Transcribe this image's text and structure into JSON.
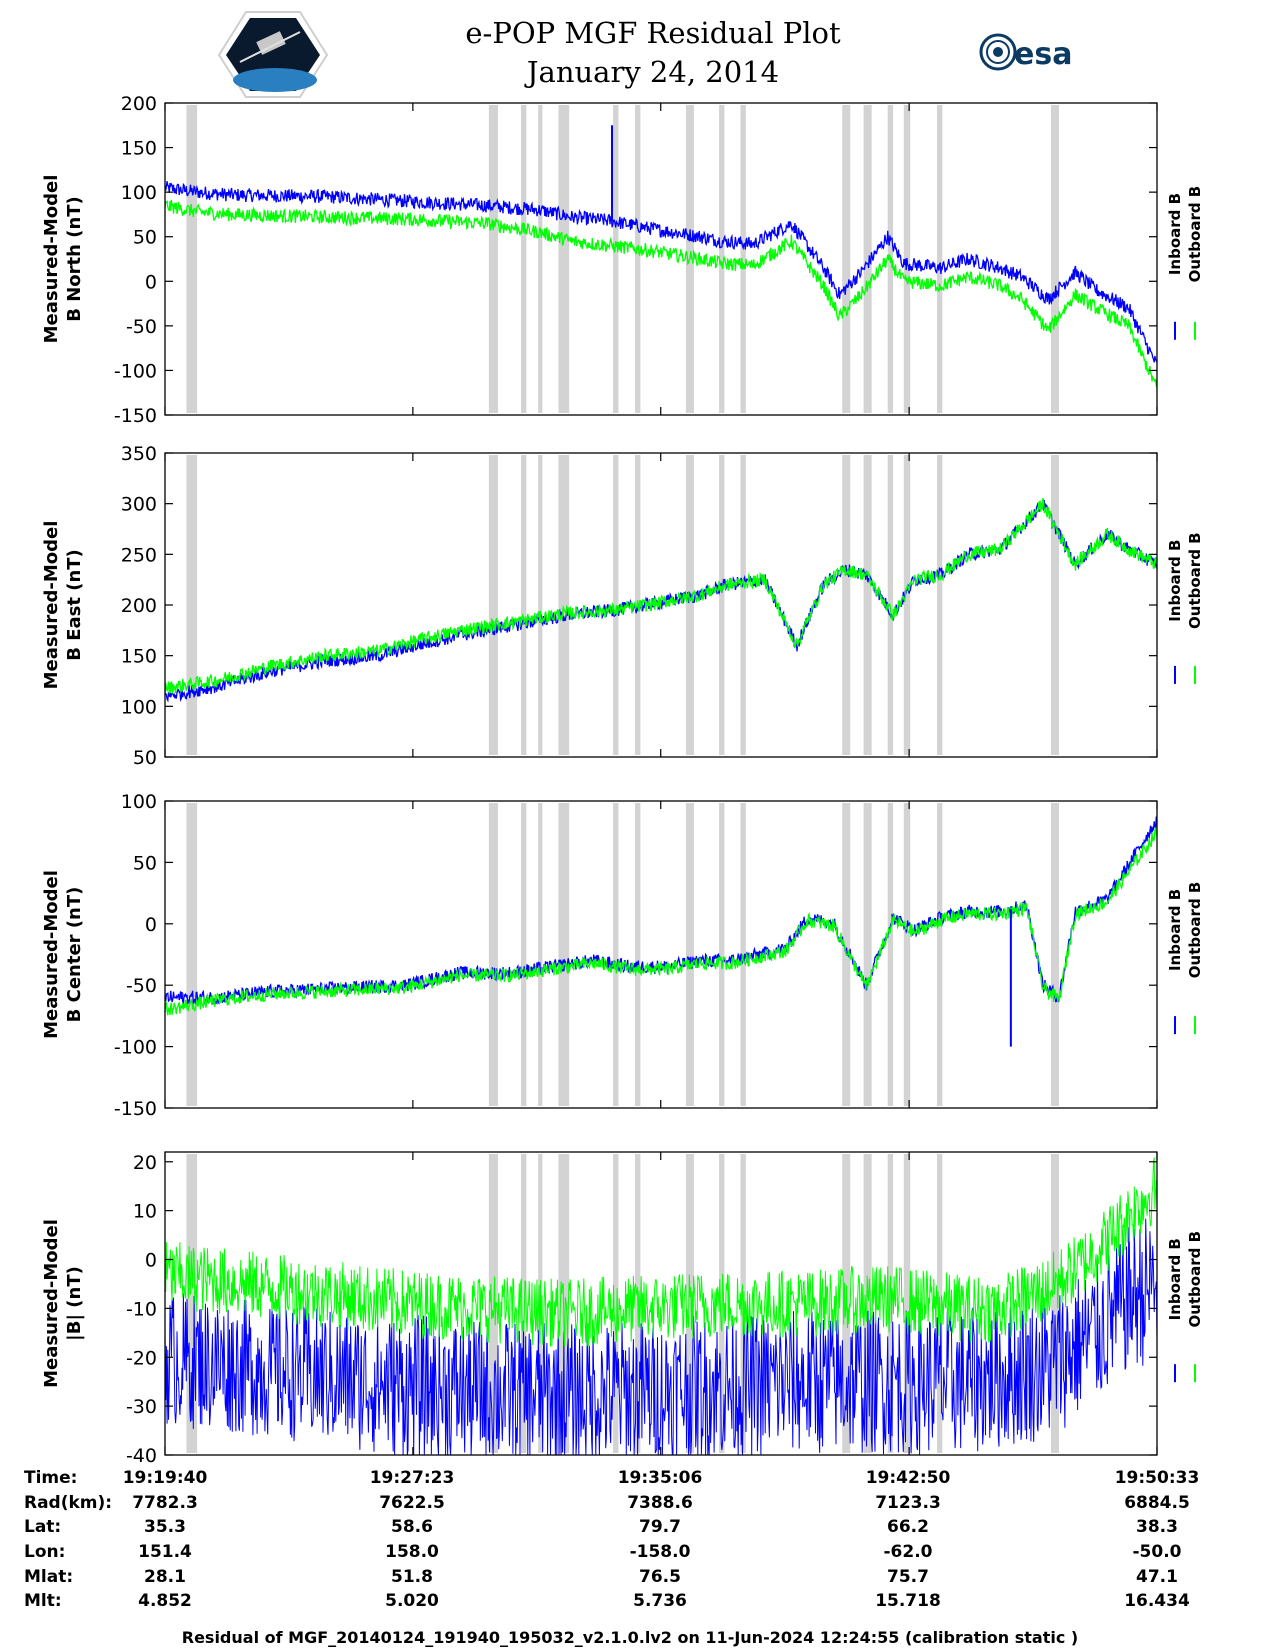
{
  "title": {
    "line1": "e-POP MGF Residual Plot",
    "line2": "January 24, 2014"
  },
  "esa_logo_text": "esa",
  "colors": {
    "inboard": "#0000ff",
    "outboard": "#00ff00",
    "gap_band": "#d3d3d3"
  },
  "legend": {
    "inboard": "Inboard B",
    "outboard": "Outboard B"
  },
  "gap_bands_seconds": [
    [
      40,
      60
    ],
    [
      605,
      622
    ],
    [
      665,
      675
    ],
    [
      697,
      705
    ],
    [
      735,
      755
    ],
    [
      837,
      847
    ],
    [
      878,
      888
    ],
    [
      973,
      988
    ],
    [
      1035,
      1045
    ],
    [
      1075,
      1085
    ],
    [
      1265,
      1280
    ],
    [
      1305,
      1320
    ],
    [
      1350,
      1360
    ],
    [
      1380,
      1392
    ],
    [
      1442,
      1452
    ],
    [
      1655,
      1670
    ]
  ],
  "chart_data": [
    {
      "id": "north",
      "type": "line",
      "ylabel_line1": "Measured-Model",
      "ylabel_line2": "B North (nT)",
      "ylim": [
        -150,
        200
      ],
      "yticks": [
        "200",
        "150",
        "100",
        "50",
        "0",
        "-50",
        "-100",
        "-150"
      ],
      "x_seconds": [
        0,
        60,
        120,
        300,
        450,
        600,
        700,
        760,
        830,
        900,
        1000,
        1040,
        1100,
        1170,
        1230,
        1260,
        1300,
        1350,
        1380,
        1450,
        1500,
        1560,
        1600,
        1650,
        1700,
        1740,
        1800,
        1853
      ],
      "series": [
        {
          "name": "Inboard B",
          "values": [
            105,
            100,
            97,
            95,
            90,
            85,
            80,
            72,
            68,
            60,
            50,
            45,
            42,
            65,
            15,
            -15,
            10,
            50,
            20,
            15,
            25,
            15,
            5,
            -20,
            10,
            -10,
            -30,
            -95
          ]
        },
        {
          "name": "Outboard B",
          "values": [
            85,
            78,
            75,
            72,
            70,
            65,
            55,
            45,
            40,
            35,
            25,
            20,
            18,
            45,
            -5,
            -40,
            -15,
            25,
            0,
            -5,
            5,
            -5,
            -20,
            -55,
            -15,
            -30,
            -50,
            -120
          ]
        }
      ],
      "spike": {
        "x": 835,
        "y": 175
      }
    },
    {
      "id": "east",
      "type": "line",
      "ylabel_line1": "Measured-Model",
      "ylabel_line2": "B East (nT)",
      "ylim": [
        50,
        350
      ],
      "yticks": [
        "350",
        "300",
        "250",
        "200",
        "150",
        "100",
        "50"
      ],
      "x_seconds": [
        0,
        100,
        200,
        300,
        400,
        470,
        550,
        650,
        750,
        840,
        900,
        1000,
        1050,
        1120,
        1180,
        1230,
        1270,
        1310,
        1360,
        1400,
        1450,
        1500,
        1560,
        1640,
        1700,
        1760,
        1800,
        1853
      ],
      "series": [
        {
          "name": "Inboard B",
          "values": [
            110,
            120,
            135,
            145,
            150,
            160,
            170,
            180,
            190,
            195,
            200,
            210,
            220,
            225,
            160,
            220,
            235,
            230,
            190,
            225,
            230,
            250,
            255,
            300,
            240,
            270,
            255,
            240
          ]
        },
        {
          "name": "Outboard B",
          "values": [
            118,
            126,
            140,
            150,
            155,
            165,
            175,
            183,
            192,
            195,
            200,
            210,
            220,
            225,
            160,
            220,
            235,
            230,
            190,
            225,
            230,
            250,
            255,
            300,
            240,
            270,
            255,
            240
          ]
        }
      ]
    },
    {
      "id": "center",
      "type": "line",
      "ylabel_line1": "Measured-Model",
      "ylabel_line2": "B Center (nT)",
      "ylim": [
        -150,
        100
      ],
      "yticks": [
        "100",
        "50",
        "0",
        "-50",
        "-100",
        "-150"
      ],
      "x_seconds": [
        0,
        100,
        200,
        350,
        450,
        550,
        650,
        720,
        800,
        870,
        940,
        1000,
        1060,
        1110,
        1160,
        1200,
        1250,
        1310,
        1360,
        1400,
        1450,
        1500,
        1560,
        1610,
        1640,
        1670,
        1700,
        1760,
        1853
      ],
      "series": [
        {
          "name": "Inboard B",
          "values": [
            -60,
            -60,
            -55,
            -52,
            -50,
            -40,
            -40,
            -35,
            -30,
            -35,
            -35,
            -30,
            -30,
            -25,
            -20,
            5,
            0,
            -50,
            5,
            -5,
            5,
            10,
            10,
            15,
            -50,
            -60,
            10,
            20,
            85
          ]
        },
        {
          "name": "Outboard B",
          "values": [
            -70,
            -62,
            -57,
            -54,
            -52,
            -42,
            -42,
            -37,
            -32,
            -37,
            -37,
            -32,
            -32,
            -27,
            -22,
            3,
            -2,
            -52,
            3,
            -7,
            3,
            8,
            8,
            13,
            -52,
            -62,
            8,
            18,
            75
          ]
        }
      ],
      "spike": {
        "x": 1580,
        "y": -100
      }
    },
    {
      "id": "magnitude",
      "type": "line",
      "ylabel_line1": "Measured-Model",
      "ylabel_line2": "|B| (nT)",
      "ylim": [
        -40,
        22
      ],
      "yticks": [
        "20",
        "10",
        "0",
        "-10",
        "-20",
        "-30",
        "-40"
      ],
      "x_seconds": [
        0,
        150,
        300,
        450,
        600,
        750,
        900,
        1050,
        1200,
        1350,
        1500,
        1560,
        1650,
        1700,
        1750,
        1800,
        1853
      ],
      "series": [
        {
          "name": "Inboard B",
          "values": [
            -20,
            -22,
            -24,
            -26,
            -27,
            -28,
            -27,
            -26,
            -25,
            -25,
            -25,
            -24,
            -22,
            -18,
            -14,
            -8,
            -5
          ],
          "band": [
            14,
            14,
            14,
            15,
            15,
            15,
            15,
            15,
            15,
            15,
            15,
            15,
            15,
            15,
            15,
            15,
            16
          ]
        },
        {
          "name": "Outboard B",
          "values": [
            -3,
            -5,
            -7,
            -9,
            -10,
            -11,
            -10,
            -9,
            -9,
            -8,
            -10,
            -10,
            -6,
            -2,
            3,
            9,
            15
          ],
          "band": [
            7,
            7,
            7,
            7,
            7,
            7,
            7,
            7,
            7,
            7,
            7,
            7,
            7,
            7,
            7,
            7,
            7
          ]
        }
      ]
    }
  ],
  "info_table": {
    "row_labels": [
      "Time:",
      "Rad(km):",
      "Lat:",
      "Lon:",
      "Mlat:",
      "Mlt:"
    ],
    "columns": [
      [
        "19:19:40",
        "7782.3",
        "35.3",
        "151.4",
        "28.1",
        "4.852"
      ],
      [
        "19:27:23",
        "7622.5",
        "58.6",
        "158.0",
        "51.8",
        "5.020"
      ],
      [
        "19:35:06",
        "7388.6",
        "79.7",
        "-158.0",
        "76.5",
        "5.736"
      ],
      [
        "19:42:50",
        "7123.3",
        "66.2",
        "-62.0",
        "75.7",
        "15.718"
      ],
      [
        "19:50:33",
        "6884.5",
        "38.3",
        "-50.0",
        "47.1",
        "16.434"
      ]
    ]
  },
  "x_span_seconds": 1853,
  "x_tick_seconds": [
    0,
    463,
    926,
    1390,
    1853
  ],
  "footer": "Residual of MGF_20140124_191940_195032_v2.1.0.lv2 on 11-Jun-2024 12:24:55 (calibration static )"
}
